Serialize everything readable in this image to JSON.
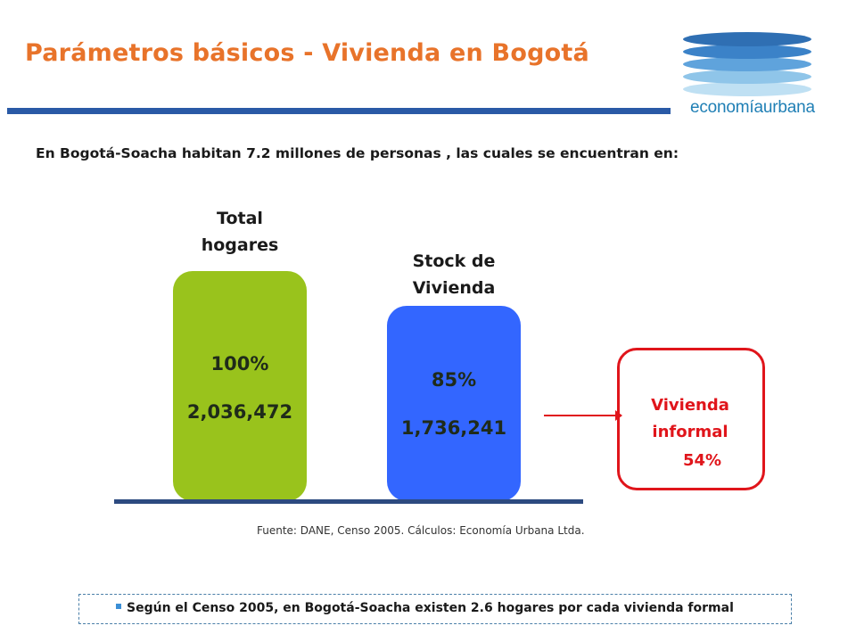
{
  "header": {
    "title": "Parámetros básicos - Vivienda en Bogotá",
    "logo_text_a": "economía",
    "logo_text_b": "urbana",
    "accent_color": "#e8732a",
    "rule_color": "#2a5aa6"
  },
  "intro": "En Bogotá-Soacha habitan 7.2 millones de personas , las cuales se encuentran en:",
  "chart_data": {
    "type": "bar",
    "categories": [
      "Total hogares",
      "Stock de Vivienda"
    ],
    "series": [
      {
        "values": [
          100,
          85
        ],
        "unit": "%"
      },
      {
        "values": [
          2036472,
          1736241
        ]
      }
    ],
    "bar_labels": [
      {
        "title_line1": "Total",
        "title_line2": "hogares",
        "pct": "100%",
        "count": "2,036,472",
        "color": "#99c31c"
      },
      {
        "title_line1": "Stock de",
        "title_line2": "Vivienda",
        "pct": "85%",
        "count": "1,736,241",
        "color": "#3366ff"
      }
    ],
    "annotation": {
      "line1": "Vivienda",
      "line2": "informal",
      "pct": "54%",
      "value": 54,
      "color": "#e0151b"
    },
    "grid": false,
    "legend": "none"
  },
  "source": "Fuente: DANE, Censo 2005. Cálculos: Economía Urbana Ltda.",
  "note": "Según el Censo 2005, en Bogotá-Soacha existen 2.6 hogares por cada vivienda formal"
}
